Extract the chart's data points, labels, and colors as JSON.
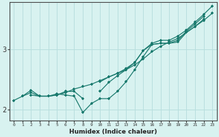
{
  "xlabel": "Humidex (Indice chaleur)",
  "ylabel": "",
  "background_color": "#d8f2f0",
  "grid_color": "#b8dede",
  "line_color": "#1a7a6e",
  "x_values": [
    0,
    1,
    2,
    3,
    4,
    5,
    6,
    7,
    8,
    9,
    10,
    11,
    12,
    13,
    14,
    15,
    16,
    17,
    18,
    19,
    20,
    21,
    22,
    23
  ],
  "line1": [
    2.15,
    2.22,
    2.28,
    2.22,
    2.22,
    2.24,
    2.28,
    2.34,
    2.38,
    2.42,
    2.48,
    2.54,
    2.6,
    2.66,
    2.74,
    2.84,
    2.96,
    3.05,
    3.12,
    3.18,
    3.28,
    3.38,
    3.48,
    3.6
  ],
  "line2": [
    null,
    2.22,
    2.32,
    2.22,
    2.22,
    2.26,
    2.24,
    2.22,
    1.95,
    2.1,
    2.18,
    2.18,
    2.3,
    2.46,
    2.66,
    2.88,
    3.08,
    3.1,
    3.1,
    3.12,
    3.28,
    3.38,
    3.5,
    null
  ],
  "line3": [
    null,
    null,
    2.24,
    2.22,
    2.22,
    2.24,
    2.3,
    2.3,
    2.18,
    null,
    2.3,
    2.45,
    2.56,
    2.66,
    2.78,
    2.98,
    3.08,
    3.1,
    3.1,
    3.15,
    3.3,
    3.42,
    3.55,
    null
  ],
  "line4": [
    null,
    null,
    null,
    null,
    null,
    null,
    null,
    null,
    null,
    null,
    2.46,
    2.54,
    2.6,
    2.68,
    2.78,
    2.98,
    3.1,
    3.15,
    3.15,
    3.22,
    3.32,
    3.45,
    3.58,
    3.72
  ],
  "ylim": [
    1.82,
    3.78
  ],
  "xlim": [
    -0.5,
    23.5
  ],
  "yticks": [
    2.0,
    3.0
  ],
  "ytick_labels": [
    "2",
    "3"
  ],
  "figsize": [
    3.2,
    2.0
  ],
  "dpi": 100
}
